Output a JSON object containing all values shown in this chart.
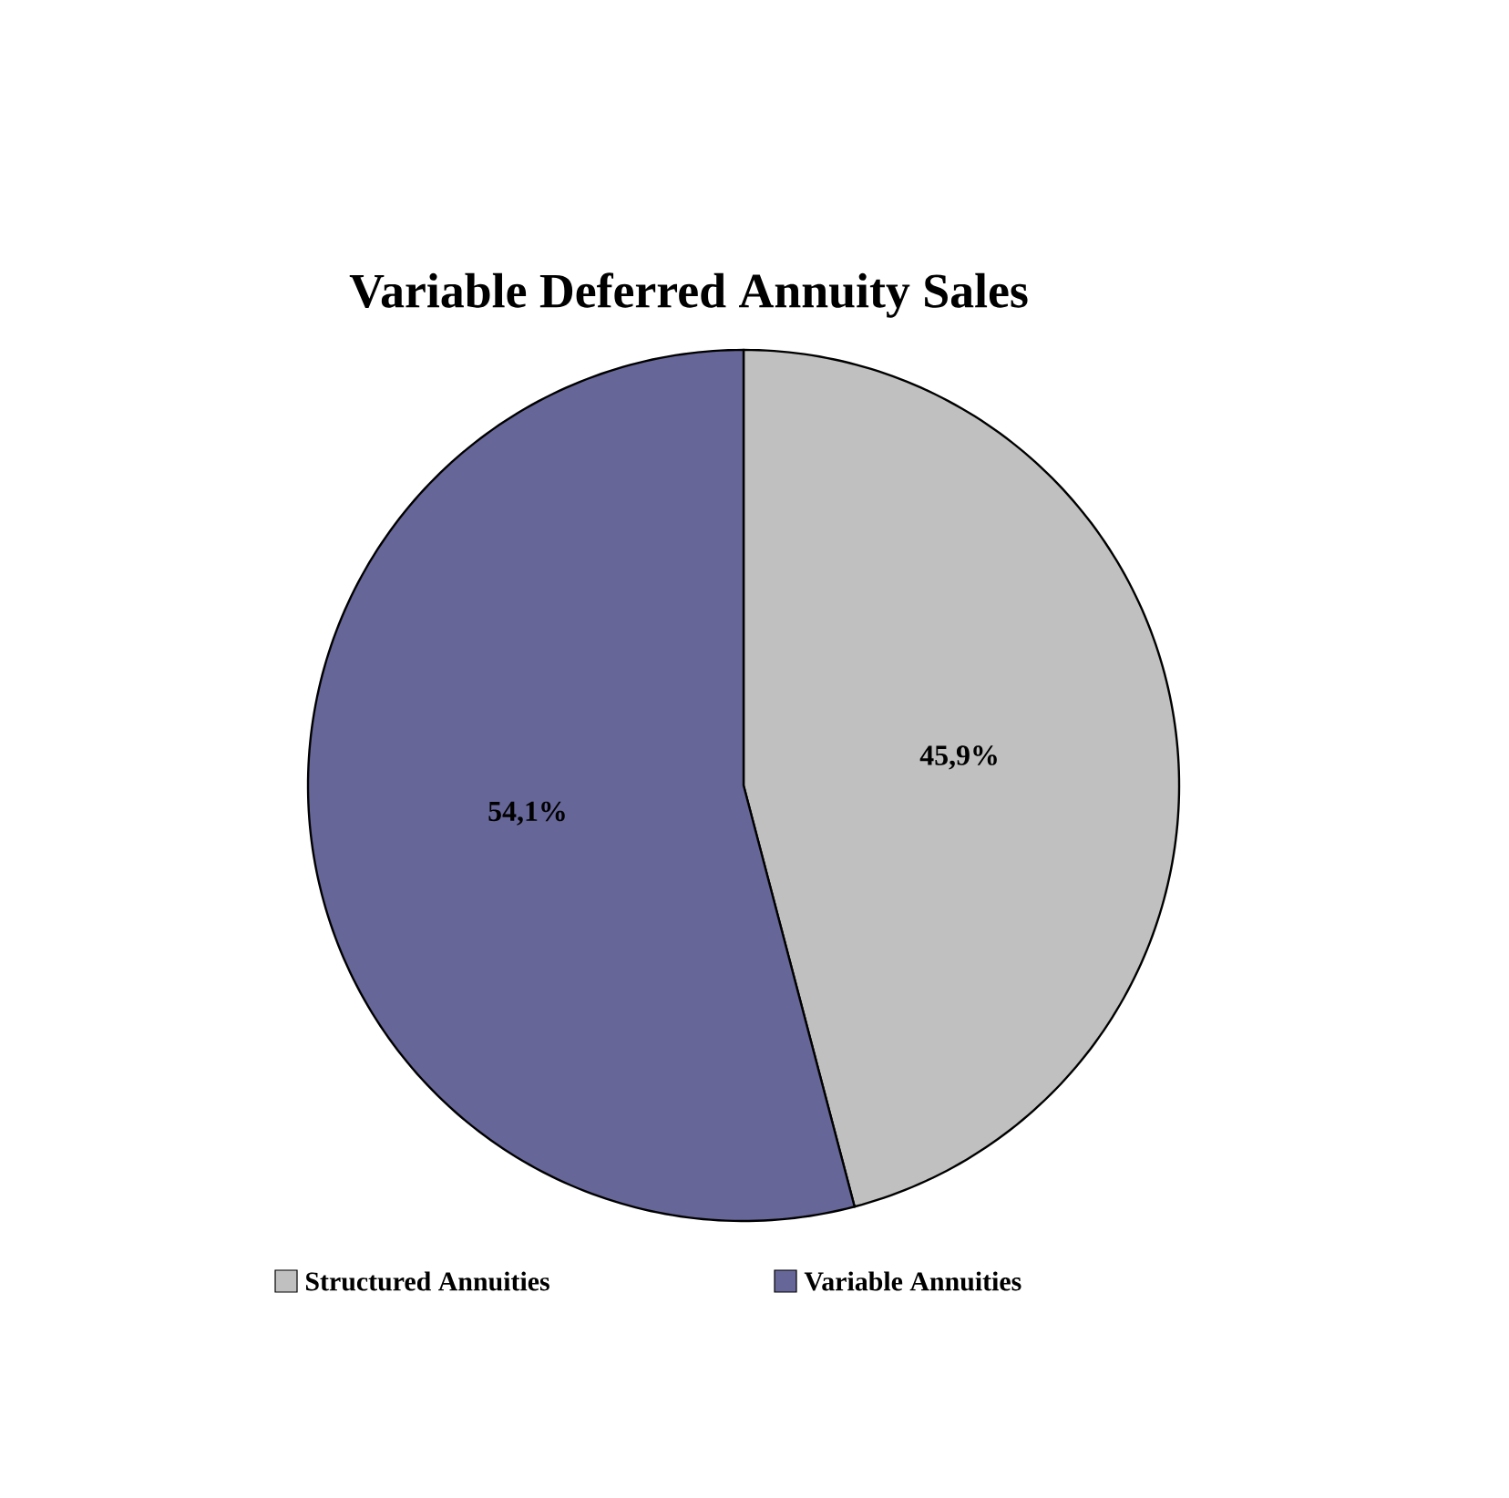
{
  "chart_data": {
    "type": "pie",
    "title": "Variable Deferred Annuity Sales",
    "categories": [
      "Structured Annuities",
      "Variable Annuities"
    ],
    "values": [
      45.9,
      54.1
    ],
    "colors": [
      "#c0c0c0",
      "#666699"
    ],
    "value_labels": [
      "45,9%",
      "54,1%"
    ],
    "legend": "bottom"
  }
}
